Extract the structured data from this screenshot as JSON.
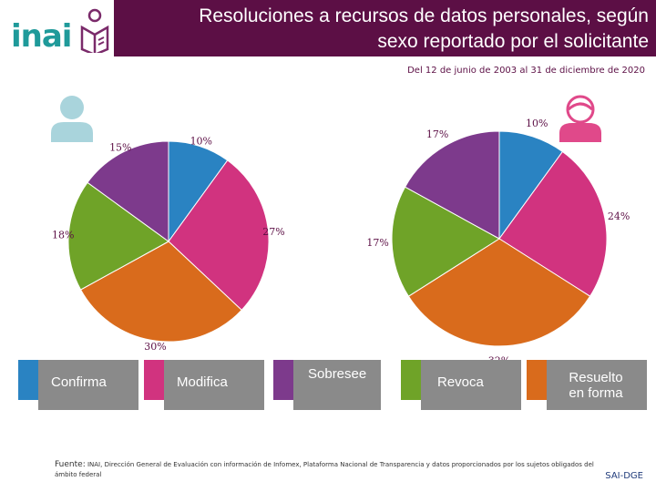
{
  "header": {
    "title_line1": "Resoluciones a recursos de datos personales, según",
    "title_line2": "sexo reportado por el solicitante",
    "logo_text": "inai"
  },
  "date_range": "Del 12 de junio de 2003 al 31 de diciembre de 2020",
  "colors": {
    "header_bg": "#5c0f45",
    "Confirma": "#2a83c2",
    "Modifica": "#d1337f",
    "Sobresee": "#7d3a8c",
    "Revoca": "#6fa328",
    "Resuelto en forma": "#d96b1c",
    "legend_card": "#8a8a8a",
    "male_avatar": "#a9d4dc",
    "female_avatar": "#e0498a"
  },
  "avatars": [
    {
      "name": "male-avatar-icon",
      "color": "#a9d4dc"
    },
    {
      "name": "female-avatar-icon",
      "color": "#e0498a"
    }
  ],
  "chart_data": [
    {
      "type": "pie",
      "group": "male",
      "slices": [
        {
          "category": "Confirma",
          "value": 10,
          "label": "10%"
        },
        {
          "category": "Modifica",
          "value": 27,
          "label": "27%"
        },
        {
          "category": "Resuelto en forma",
          "value": 30,
          "label": "30%"
        },
        {
          "category": "Revoca",
          "value": 18,
          "label": "18%"
        },
        {
          "category": "Sobresee",
          "value": 15,
          "label": "15%"
        }
      ]
    },
    {
      "type": "pie",
      "group": "female",
      "slices": [
        {
          "category": "Confirma",
          "value": 10,
          "label": "10%"
        },
        {
          "category": "Modifica",
          "value": 24,
          "label": "24%"
        },
        {
          "category": "Resuelto en forma",
          "value": 32,
          "label": "32%"
        },
        {
          "category": "Revoca",
          "value": 17,
          "label": "17%"
        },
        {
          "category": "Sobresee",
          "value": 17,
          "label": "17%"
        }
      ]
    }
  ],
  "legend": [
    {
      "label": "Confirma",
      "color": "#2a83c2"
    },
    {
      "label": "Modifica",
      "color": "#d1337f"
    },
    {
      "label": "Sobresee",
      "color": "#7d3a8c"
    },
    {
      "label": "Revoca",
      "color": "#6fa328"
    },
    {
      "label": "Resuelto en forma",
      "color": "#d96b1c"
    }
  ],
  "source": {
    "prefix": "Fuente:",
    "text": "INAI, Dirección General de Evaluación con información de Infomex, Plataforma Nacional de Transparencia y datos proporcionados por los sujetos obligados del ámbito federal"
  },
  "footer_tag": "SAI-DGE"
}
